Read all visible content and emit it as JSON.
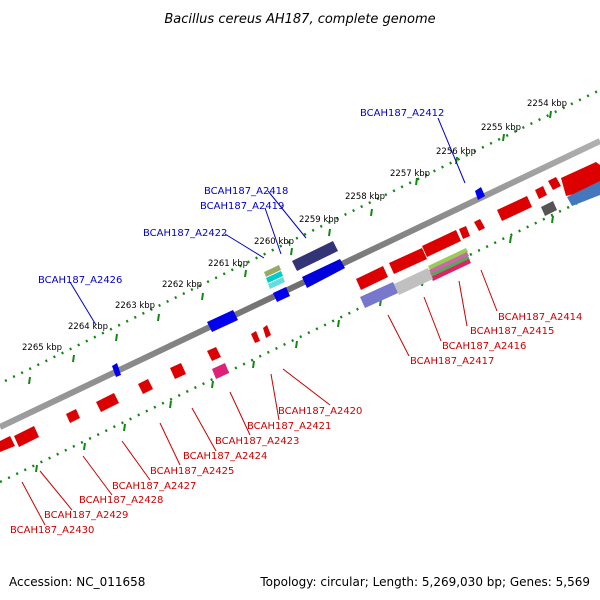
{
  "title": "Bacillus cereus AH187, complete genome",
  "footer": {
    "accession": "Accession: NC_011658",
    "stats": "Topology: circular; Length: 5,269,030 bp; Genes: 5,569"
  },
  "colors": {
    "backbone": "#808080",
    "ticks": "#118811",
    "forward_label": "#0000cc",
    "reverse_label": "#cc0000"
  },
  "kbp_ticks": [
    "2254 kbp",
    "2255 kbp",
    "2256 kbp",
    "2257 kbp",
    "2258 kbp",
    "2259 kbp",
    "2260 kbp",
    "2261 kbp",
    "2262 kbp",
    "2263 kbp",
    "2264 kbp",
    "2265 kbp"
  ],
  "forward_gene_labels": [
    "BCAH187_A2412",
    "BCAH187_A2418",
    "BCAH187_A2419",
    "BCAH187_A2422",
    "BCAH187_A2426"
  ],
  "reverse_gene_labels": [
    "BCAH187_A2414",
    "BCAH187_A2415",
    "BCAH187_A2416",
    "BCAH187_A2417",
    "BCAH187_A2420",
    "BCAH187_A2421",
    "BCAH187_A2423",
    "BCAH187_A2424",
    "BCAH187_A2425",
    "BCAH187_A2427",
    "BCAH187_A2428",
    "BCAH187_A2429",
    "BCAH187_A2430"
  ]
}
